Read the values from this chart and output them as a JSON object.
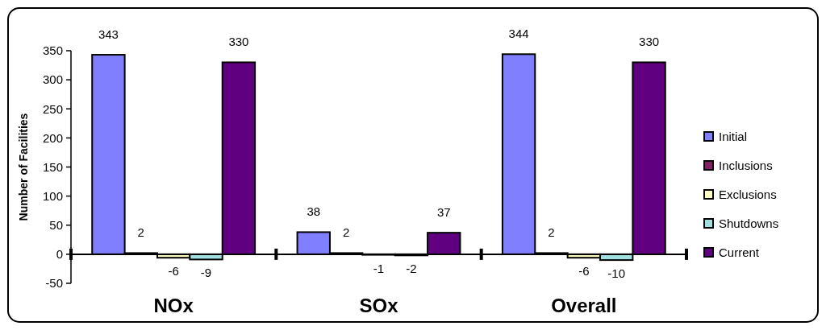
{
  "chart_data": {
    "type": "bar",
    "ylabel": "Number of Facilities",
    "categories": [
      "NOx",
      "SOx",
      "Overall"
    ],
    "series": [
      {
        "name": "Initial",
        "color": "#8080ff",
        "values": [
          343,
          38,
          344
        ]
      },
      {
        "name": "Inclusions",
        "color": "#802060",
        "values": [
          2,
          2,
          2
        ]
      },
      {
        "name": "Exclusions",
        "color": "#ffffc0",
        "values": [
          -6,
          -1,
          -6
        ]
      },
      {
        "name": "Shutdowns",
        "color": "#a0e0e0",
        "values": [
          -9,
          -2,
          -10
        ]
      },
      {
        "name": "Current",
        "color": "#600080",
        "values": [
          330,
          37,
          330
        ]
      }
    ],
    "ylim": [
      -50,
      350
    ],
    "yticks": [
      -50,
      0,
      50,
      100,
      150,
      200,
      250,
      300,
      350
    ],
    "grid": false,
    "legend": "right",
    "data_labels": true
  }
}
